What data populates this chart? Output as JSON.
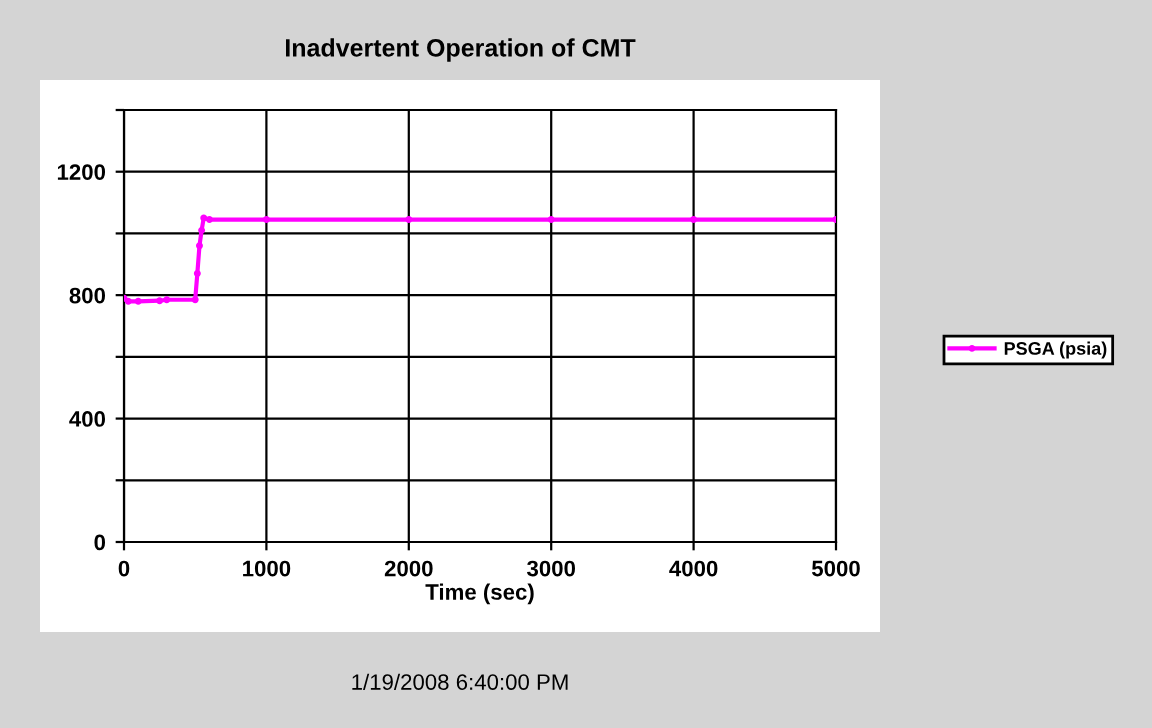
{
  "chart_data": {
    "type": "line",
    "title": "Inadvertent Operation of CMT",
    "xlabel": "Time (sec)",
    "annotations": [
      "1/19/2008 6:40:00 PM"
    ],
    "series": [
      {
        "name": "PSGA (psia)",
        "color": "#ff00ff",
        "x": [
          0,
          30,
          100,
          250,
          300,
          500,
          515,
          530,
          545,
          560,
          600,
          1000,
          2000,
          3000,
          4000,
          5000
        ],
        "values": [
          790,
          780,
          780,
          782,
          785,
          785,
          870,
          960,
          1010,
          1050,
          1045,
          1045,
          1045,
          1045,
          1045,
          1045
        ]
      }
    ],
    "xlim": [
      0,
      5000
    ],
    "xticks": [
      0,
      1000,
      2000,
      3000,
      4000,
      5000
    ],
    "ylim": [
      0,
      1400
    ],
    "yticks": [
      0,
      {
        "value": 200,
        "label": null
      },
      400,
      {
        "value": 600,
        "label": null
      },
      800,
      {
        "value": 1000,
        "label": null
      },
      1200,
      {
        "value": 1400,
        "label": null
      }
    ],
    "grid": true,
    "legend": "right",
    "marker": "circle",
    "line_style": "solid"
  }
}
